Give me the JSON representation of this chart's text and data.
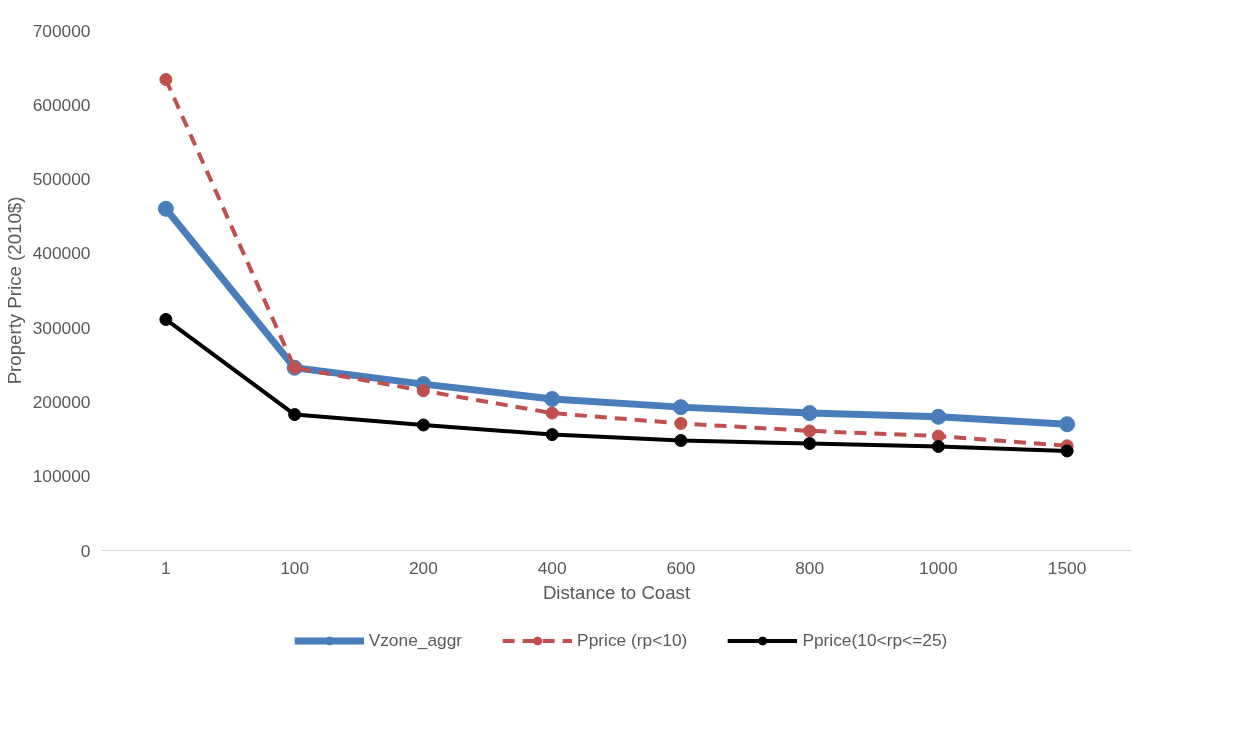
{
  "chart_data": {
    "type": "line",
    "xlabel": "Distance to Coast",
    "ylabel": "Property Price (2010$)",
    "categories": [
      "1",
      "100",
      "200",
      "400",
      "600",
      "800",
      "1000",
      "1500"
    ],
    "series": [
      {
        "name": "Vzone_aggr",
        "color": "#4a7ebb",
        "line_style": "solid",
        "values": [
          460000,
          246000,
          224000,
          204000,
          193000,
          185000,
          180000,
          170000
        ]
      },
      {
        "name": "Pprice (rp<10)",
        "color": "#c0504d",
        "line_style": "dashed",
        "values": [
          634000,
          246000,
          215000,
          185000,
          171000,
          161000,
          154000,
          141000
        ]
      },
      {
        "name": "Pprice(10<rp<=25)",
        "color": "#000000",
        "line_style": "solid",
        "values": [
          311000,
          183000,
          169000,
          156000,
          148000,
          144000,
          140000,
          134000
        ]
      }
    ],
    "ylim": [
      0,
      700000
    ],
    "yticks": [
      0,
      100000,
      200000,
      300000,
      400000,
      500000,
      600000,
      700000
    ],
    "grid": false,
    "legend": "bottom",
    "marker": "circle"
  }
}
